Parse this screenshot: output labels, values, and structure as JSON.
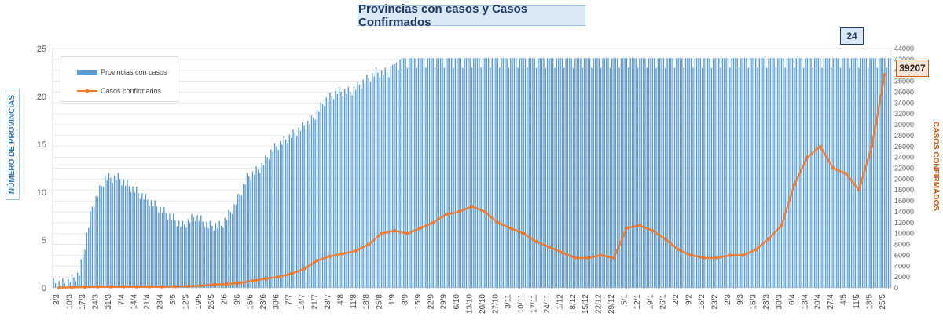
{
  "chart_data": {
    "type": "bar+line",
    "title": "Provincias con casos y Casos Confirmados",
    "ylabel_left": "NÚMERO DE PROVINCIAS",
    "ylabel_right": "CASOS CONFIRMADOS",
    "y_left_range": [
      0,
      25
    ],
    "y_left_ticks": [
      "0",
      "5",
      "10",
      "15",
      "20",
      "25"
    ],
    "y_right_range": [
      0,
      44000
    ],
    "y_right_ticks": [
      "0",
      "2000",
      "4000",
      "6000",
      "8000",
      "10000",
      "12000",
      "14000",
      "16000",
      "18000",
      "20000",
      "22000",
      "24000",
      "26000",
      "28000",
      "30000",
      "32000",
      "34000",
      "36000",
      "38000",
      "40000",
      "42000",
      "44000"
    ],
    "x_tick_labels": [
      "3/3",
      "10/3",
      "17/3",
      "24/3",
      "31/3",
      "7/4",
      "14/4",
      "21/4",
      "28/4",
      "5/5",
      "12/5",
      "19/5",
      "26/5",
      "2/6",
      "9/6",
      "16/6",
      "23/6",
      "30/6",
      "7/7",
      "14/7",
      "21/7",
      "28/7",
      "4/8",
      "11/8",
      "18/8",
      "25/8",
      "1/9",
      "8/9",
      "15/9",
      "22/9",
      "29/9",
      "6/10",
      "13/10",
      "20/10",
      "27/10",
      "3/11",
      "10/11",
      "17/11",
      "24/11",
      "1/12",
      "8/12",
      "15/12",
      "22/12",
      "29/12",
      "5/1",
      "12/1",
      "19/1",
      "26/1",
      "2/2",
      "9/2",
      "16/2",
      "23/2",
      "2/3",
      "9/3",
      "16/3",
      "23/3",
      "30/3",
      "6/4",
      "13/4",
      "20/4",
      "27/4",
      "4/5",
      "11/5",
      "18/5",
      "25/5"
    ],
    "grid": true,
    "legend_position": "top-left",
    "series": [
      {
        "name": "Provincias con casos",
        "kind": "bar",
        "axis": "left",
        "color": "#5b9bd5",
        "weekly_values": [
          1,
          2,
          9,
          12,
          12,
          11,
          10,
          9,
          8,
          7,
          8,
          7,
          7,
          9,
          12,
          13,
          15,
          16,
          17,
          18,
          20,
          21,
          21,
          22,
          23,
          23,
          24,
          24,
          24,
          24,
          24,
          24,
          24,
          24,
          24,
          24,
          24,
          24,
          24,
          24,
          24,
          24,
          24,
          24,
          24,
          24,
          24,
          24,
          24,
          24,
          24,
          24,
          24,
          24,
          24,
          24,
          24,
          24,
          24,
          24,
          24,
          24,
          24,
          24,
          24
        ]
      },
      {
        "name": "Casos confirmados",
        "kind": "line",
        "axis": "right",
        "color": "#ed7d31",
        "weekly_values": [
          50,
          100,
          150,
          200,
          200,
          200,
          200,
          200,
          200,
          250,
          300,
          400,
          600,
          700,
          900,
          1300,
          1700,
          2000,
          2600,
          3500,
          5000,
          5800,
          6300,
          6800,
          8000,
          10000,
          10500,
          10000,
          11000,
          12000,
          13500,
          14000,
          15000,
          14000,
          12000,
          11000,
          10000,
          8500,
          7500,
          6500,
          5500,
          5500,
          6000,
          5500,
          11000,
          11500,
          10500,
          9000,
          7000,
          6000,
          5500,
          5500,
          6000,
          6000,
          7000,
          9000,
          11500,
          19000,
          24000,
          26000,
          22000,
          21000,
          18000,
          26000,
          39207
        ]
      }
    ],
    "annotations": {
      "provincias_last_value": "24",
      "casos_last_value": "39207"
    }
  },
  "colors": {
    "bar": "#5b9bd5",
    "line": "#ed7d31",
    "title_bg": "#dae8f5",
    "title_text": "#1f3864"
  }
}
